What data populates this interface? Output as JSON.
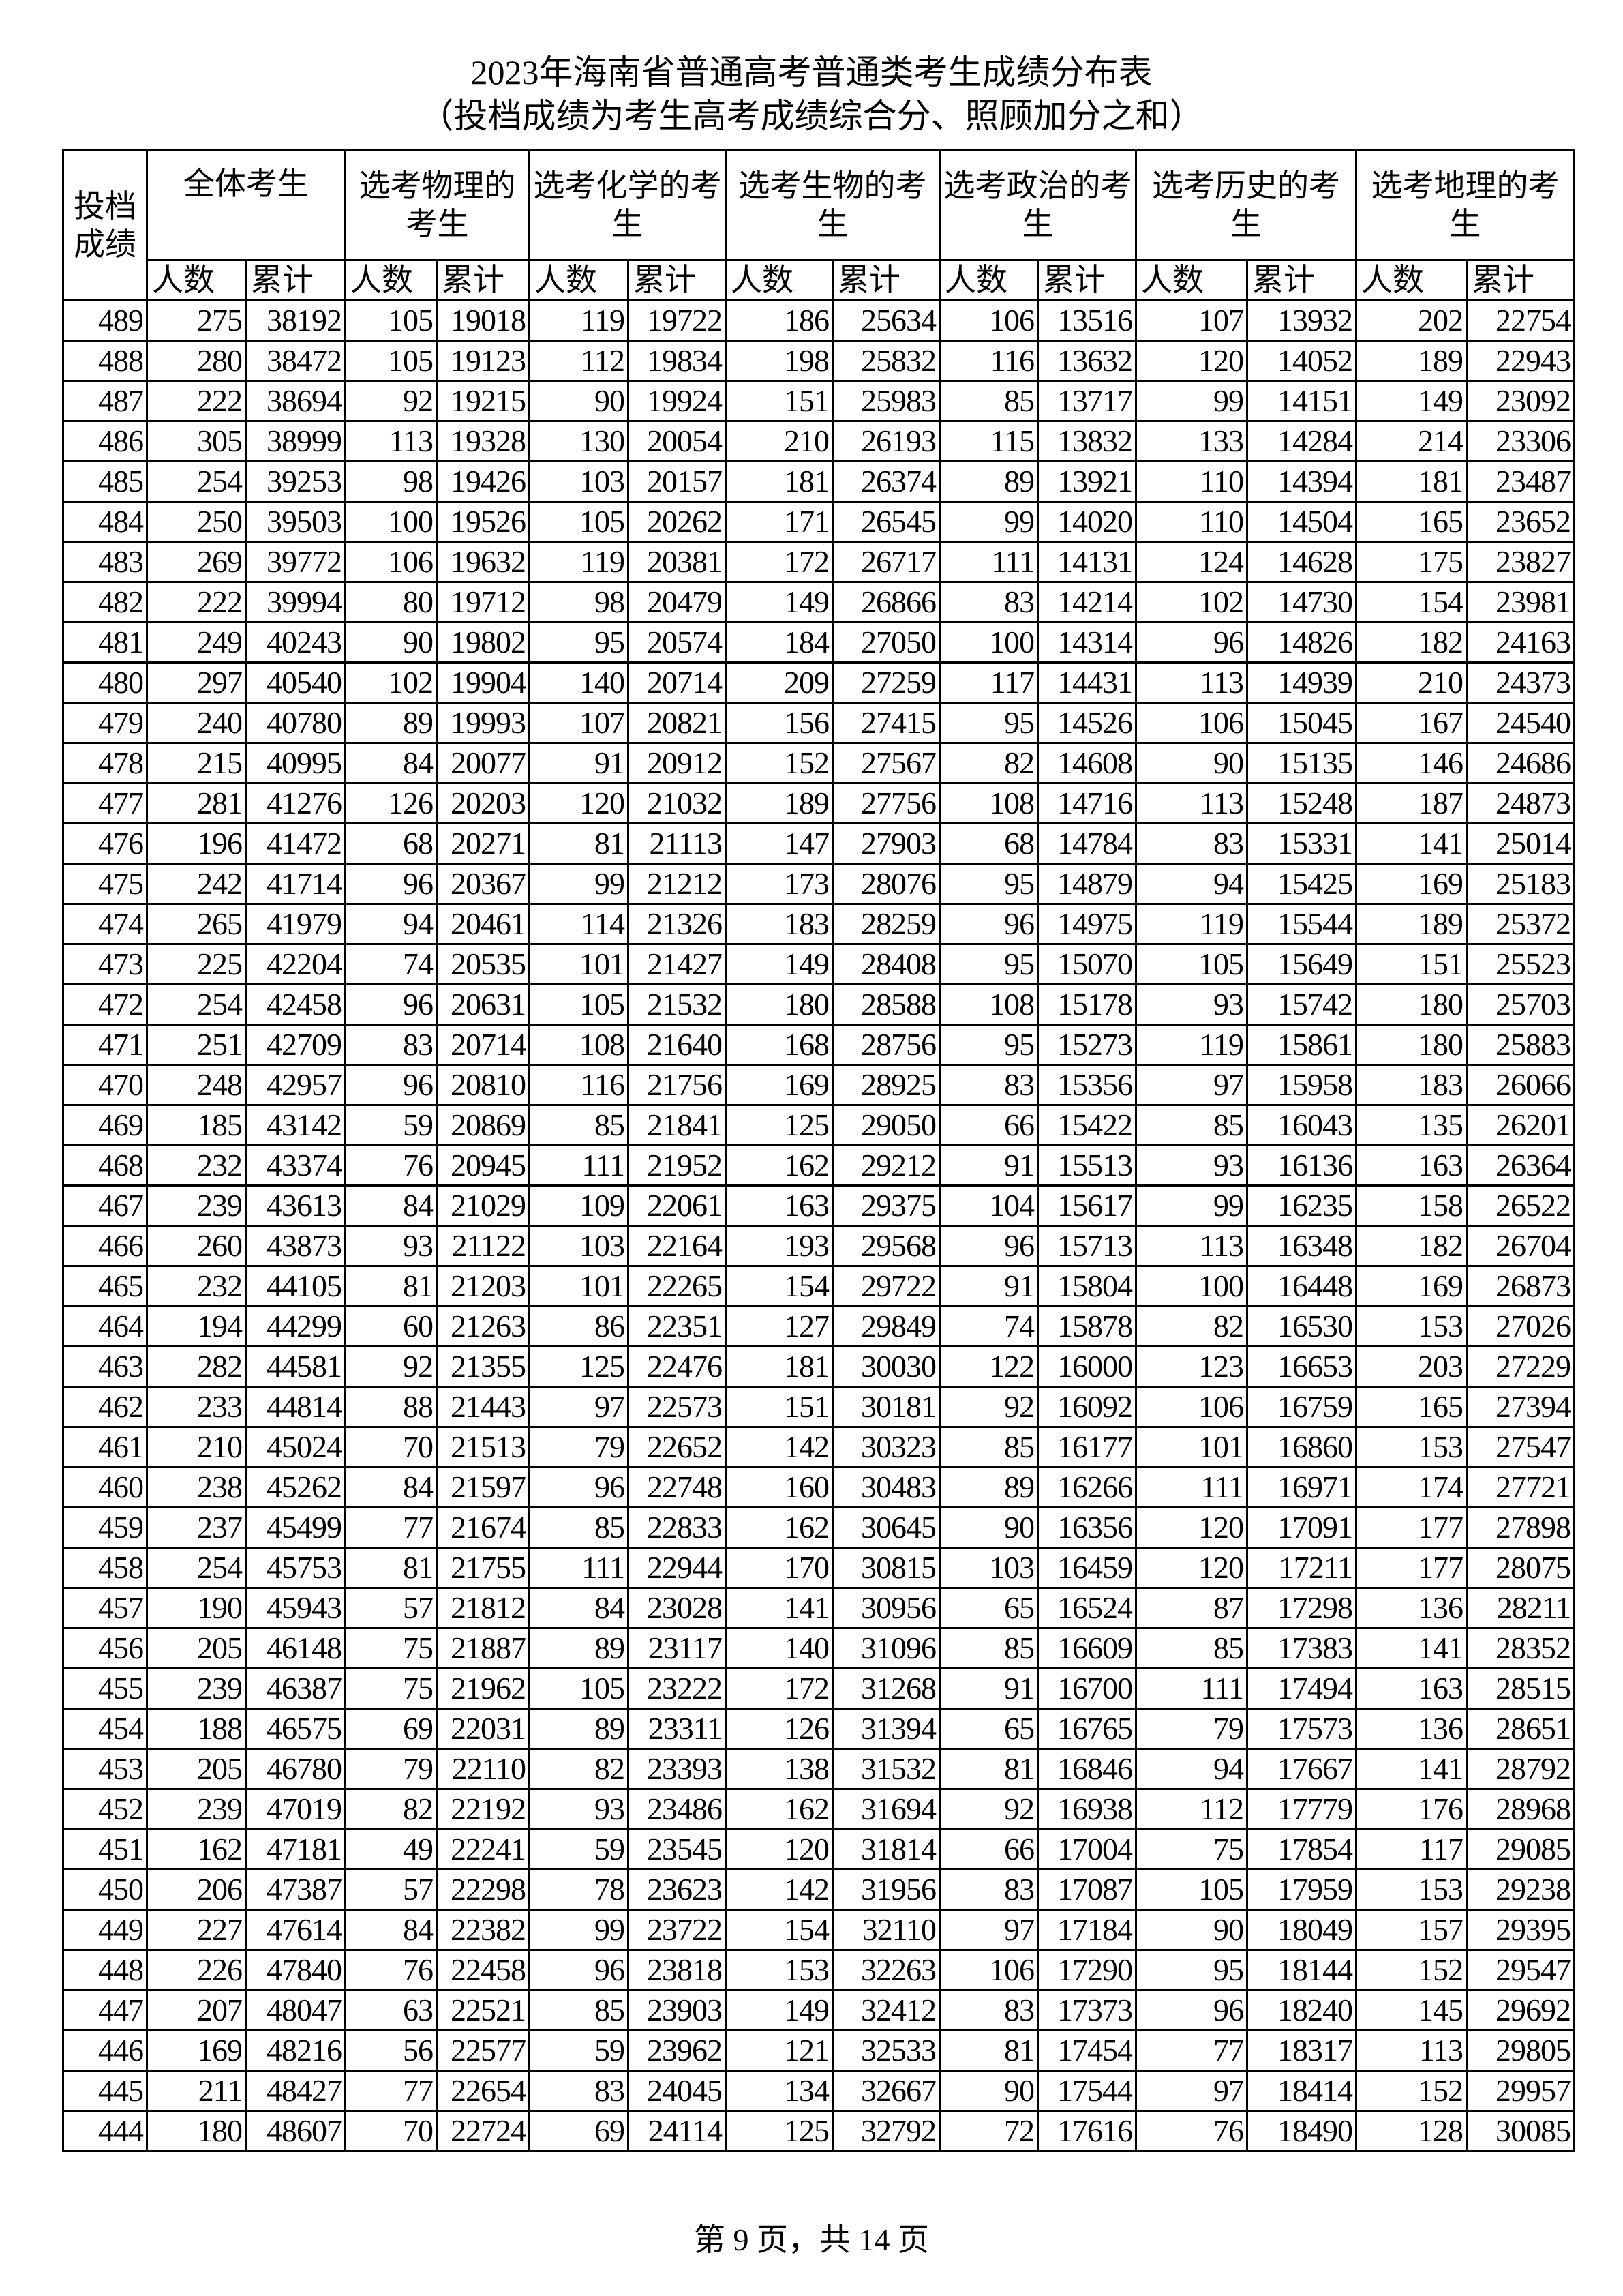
{
  "title": "2023年海南省普通高考普通类考生成绩分布表",
  "subtitle": "（投档成绩为考生高考成绩综合分、照顾加分之和）",
  "header": {
    "score": "投档成绩",
    "groups": [
      "全体考生",
      "选考物理的考生",
      "选考化学的考生",
      "选考生物的考生",
      "选考政治的考生",
      "选考历史的考生",
      "选考地理的考生"
    ],
    "count_label": "人数",
    "cumulative_label": "累计"
  },
  "rows": [
    [
      "489",
      "275",
      "38192",
      "105",
      "19018",
      "119",
      "19722",
      "186",
      "25634",
      "106",
      "13516",
      "107",
      "13932",
      "202",
      "22754"
    ],
    [
      "488",
      "280",
      "38472",
      "105",
      "19123",
      "112",
      "19834",
      "198",
      "25832",
      "116",
      "13632",
      "120",
      "14052",
      "189",
      "22943"
    ],
    [
      "487",
      "222",
      "38694",
      "92",
      "19215",
      "90",
      "19924",
      "151",
      "25983",
      "85",
      "13717",
      "99",
      "14151",
      "149",
      "23092"
    ],
    [
      "486",
      "305",
      "38999",
      "113",
      "19328",
      "130",
      "20054",
      "210",
      "26193",
      "115",
      "13832",
      "133",
      "14284",
      "214",
      "23306"
    ],
    [
      "485",
      "254",
      "39253",
      "98",
      "19426",
      "103",
      "20157",
      "181",
      "26374",
      "89",
      "13921",
      "110",
      "14394",
      "181",
      "23487"
    ],
    [
      "484",
      "250",
      "39503",
      "100",
      "19526",
      "105",
      "20262",
      "171",
      "26545",
      "99",
      "14020",
      "110",
      "14504",
      "165",
      "23652"
    ],
    [
      "483",
      "269",
      "39772",
      "106",
      "19632",
      "119",
      "20381",
      "172",
      "26717",
      "111",
      "14131",
      "124",
      "14628",
      "175",
      "23827"
    ],
    [
      "482",
      "222",
      "39994",
      "80",
      "19712",
      "98",
      "20479",
      "149",
      "26866",
      "83",
      "14214",
      "102",
      "14730",
      "154",
      "23981"
    ],
    [
      "481",
      "249",
      "40243",
      "90",
      "19802",
      "95",
      "20574",
      "184",
      "27050",
      "100",
      "14314",
      "96",
      "14826",
      "182",
      "24163"
    ],
    [
      "480",
      "297",
      "40540",
      "102",
      "19904",
      "140",
      "20714",
      "209",
      "27259",
      "117",
      "14431",
      "113",
      "14939",
      "210",
      "24373"
    ],
    [
      "479",
      "240",
      "40780",
      "89",
      "19993",
      "107",
      "20821",
      "156",
      "27415",
      "95",
      "14526",
      "106",
      "15045",
      "167",
      "24540"
    ],
    [
      "478",
      "215",
      "40995",
      "84",
      "20077",
      "91",
      "20912",
      "152",
      "27567",
      "82",
      "14608",
      "90",
      "15135",
      "146",
      "24686"
    ],
    [
      "477",
      "281",
      "41276",
      "126",
      "20203",
      "120",
      "21032",
      "189",
      "27756",
      "108",
      "14716",
      "113",
      "15248",
      "187",
      "24873"
    ],
    [
      "476",
      "196",
      "41472",
      "68",
      "20271",
      "81",
      "21113",
      "147",
      "27903",
      "68",
      "14784",
      "83",
      "15331",
      "141",
      "25014"
    ],
    [
      "475",
      "242",
      "41714",
      "96",
      "20367",
      "99",
      "21212",
      "173",
      "28076",
      "95",
      "14879",
      "94",
      "15425",
      "169",
      "25183"
    ],
    [
      "474",
      "265",
      "41979",
      "94",
      "20461",
      "114",
      "21326",
      "183",
      "28259",
      "96",
      "14975",
      "119",
      "15544",
      "189",
      "25372"
    ],
    [
      "473",
      "225",
      "42204",
      "74",
      "20535",
      "101",
      "21427",
      "149",
      "28408",
      "95",
      "15070",
      "105",
      "15649",
      "151",
      "25523"
    ],
    [
      "472",
      "254",
      "42458",
      "96",
      "20631",
      "105",
      "21532",
      "180",
      "28588",
      "108",
      "15178",
      "93",
      "15742",
      "180",
      "25703"
    ],
    [
      "471",
      "251",
      "42709",
      "83",
      "20714",
      "108",
      "21640",
      "168",
      "28756",
      "95",
      "15273",
      "119",
      "15861",
      "180",
      "25883"
    ],
    [
      "470",
      "248",
      "42957",
      "96",
      "20810",
      "116",
      "21756",
      "169",
      "28925",
      "83",
      "15356",
      "97",
      "15958",
      "183",
      "26066"
    ],
    [
      "469",
      "185",
      "43142",
      "59",
      "20869",
      "85",
      "21841",
      "125",
      "29050",
      "66",
      "15422",
      "85",
      "16043",
      "135",
      "26201"
    ],
    [
      "468",
      "232",
      "43374",
      "76",
      "20945",
      "111",
      "21952",
      "162",
      "29212",
      "91",
      "15513",
      "93",
      "16136",
      "163",
      "26364"
    ],
    [
      "467",
      "239",
      "43613",
      "84",
      "21029",
      "109",
      "22061",
      "163",
      "29375",
      "104",
      "15617",
      "99",
      "16235",
      "158",
      "26522"
    ],
    [
      "466",
      "260",
      "43873",
      "93",
      "21122",
      "103",
      "22164",
      "193",
      "29568",
      "96",
      "15713",
      "113",
      "16348",
      "182",
      "26704"
    ],
    [
      "465",
      "232",
      "44105",
      "81",
      "21203",
      "101",
      "22265",
      "154",
      "29722",
      "91",
      "15804",
      "100",
      "16448",
      "169",
      "26873"
    ],
    [
      "464",
      "194",
      "44299",
      "60",
      "21263",
      "86",
      "22351",
      "127",
      "29849",
      "74",
      "15878",
      "82",
      "16530",
      "153",
      "27026"
    ],
    [
      "463",
      "282",
      "44581",
      "92",
      "21355",
      "125",
      "22476",
      "181",
      "30030",
      "122",
      "16000",
      "123",
      "16653",
      "203",
      "27229"
    ],
    [
      "462",
      "233",
      "44814",
      "88",
      "21443",
      "97",
      "22573",
      "151",
      "30181",
      "92",
      "16092",
      "106",
      "16759",
      "165",
      "27394"
    ],
    [
      "461",
      "210",
      "45024",
      "70",
      "21513",
      "79",
      "22652",
      "142",
      "30323",
      "85",
      "16177",
      "101",
      "16860",
      "153",
      "27547"
    ],
    [
      "460",
      "238",
      "45262",
      "84",
      "21597",
      "96",
      "22748",
      "160",
      "30483",
      "89",
      "16266",
      "111",
      "16971",
      "174",
      "27721"
    ],
    [
      "459",
      "237",
      "45499",
      "77",
      "21674",
      "85",
      "22833",
      "162",
      "30645",
      "90",
      "16356",
      "120",
      "17091",
      "177",
      "27898"
    ],
    [
      "458",
      "254",
      "45753",
      "81",
      "21755",
      "111",
      "22944",
      "170",
      "30815",
      "103",
      "16459",
      "120",
      "17211",
      "177",
      "28075"
    ],
    [
      "457",
      "190",
      "45943",
      "57",
      "21812",
      "84",
      "23028",
      "141",
      "30956",
      "65",
      "16524",
      "87",
      "17298",
      "136",
      "28211"
    ],
    [
      "456",
      "205",
      "46148",
      "75",
      "21887",
      "89",
      "23117",
      "140",
      "31096",
      "85",
      "16609",
      "85",
      "17383",
      "141",
      "28352"
    ],
    [
      "455",
      "239",
      "46387",
      "75",
      "21962",
      "105",
      "23222",
      "172",
      "31268",
      "91",
      "16700",
      "111",
      "17494",
      "163",
      "28515"
    ],
    [
      "454",
      "188",
      "46575",
      "69",
      "22031",
      "89",
      "23311",
      "126",
      "31394",
      "65",
      "16765",
      "79",
      "17573",
      "136",
      "28651"
    ],
    [
      "453",
      "205",
      "46780",
      "79",
      "22110",
      "82",
      "23393",
      "138",
      "31532",
      "81",
      "16846",
      "94",
      "17667",
      "141",
      "28792"
    ],
    [
      "452",
      "239",
      "47019",
      "82",
      "22192",
      "93",
      "23486",
      "162",
      "31694",
      "92",
      "16938",
      "112",
      "17779",
      "176",
      "28968"
    ],
    [
      "451",
      "162",
      "47181",
      "49",
      "22241",
      "59",
      "23545",
      "120",
      "31814",
      "66",
      "17004",
      "75",
      "17854",
      "117",
      "29085"
    ],
    [
      "450",
      "206",
      "47387",
      "57",
      "22298",
      "78",
      "23623",
      "142",
      "31956",
      "83",
      "17087",
      "105",
      "17959",
      "153",
      "29238"
    ],
    [
      "449",
      "227",
      "47614",
      "84",
      "22382",
      "99",
      "23722",
      "154",
      "32110",
      "97",
      "17184",
      "90",
      "18049",
      "157",
      "29395"
    ],
    [
      "448",
      "226",
      "47840",
      "76",
      "22458",
      "96",
      "23818",
      "153",
      "32263",
      "106",
      "17290",
      "95",
      "18144",
      "152",
      "29547"
    ],
    [
      "447",
      "207",
      "48047",
      "63",
      "22521",
      "85",
      "23903",
      "149",
      "32412",
      "83",
      "17373",
      "96",
      "18240",
      "145",
      "29692"
    ],
    [
      "446",
      "169",
      "48216",
      "56",
      "22577",
      "59",
      "23962",
      "121",
      "32533",
      "81",
      "17454",
      "77",
      "18317",
      "113",
      "29805"
    ],
    [
      "445",
      "211",
      "48427",
      "77",
      "22654",
      "83",
      "24045",
      "134",
      "32667",
      "90",
      "17544",
      "97",
      "18414",
      "152",
      "29957"
    ],
    [
      "444",
      "180",
      "48607",
      "70",
      "22724",
      "69",
      "24114",
      "125",
      "32792",
      "72",
      "17616",
      "76",
      "18490",
      "128",
      "30085"
    ]
  ],
  "footer": "第 9 页，共 14 页"
}
